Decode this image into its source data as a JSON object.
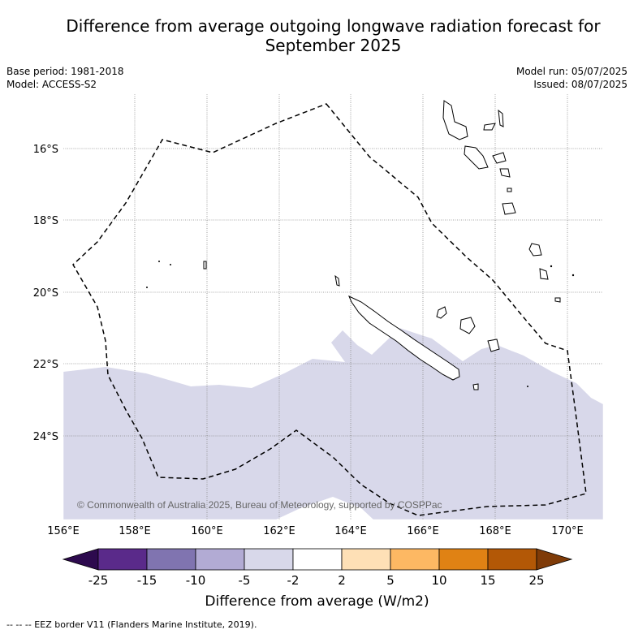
{
  "title_line1": "Difference from average outgoing longwave radiation forecast for",
  "title_line2": "September 2025",
  "base_period": "Base period: 1981-2018",
  "model": "Model: ACCESS-S2",
  "model_run": "Model run: 05/07/2025",
  "issued": "Issued: 08/07/2025",
  "copyright": "© Commonwealth of Australia 2025, Bureau of Meteorology, supported by COSPPac",
  "lon_labels": [
    "156°E",
    "158°E",
    "160°E",
    "162°E",
    "164°E",
    "166°E",
    "168°E",
    "170°E"
  ],
  "lat_labels": [
    "16°S",
    "18°S",
    "20°S",
    "22°S",
    "24°S"
  ],
  "colorbar": {
    "label": "Difference from average (W/m2)",
    "ticks": [
      "-25",
      "-15",
      "-10",
      "-5",
      "-2",
      "2",
      "5",
      "10",
      "15",
      "25"
    ],
    "colors": [
      "#2d0a4e",
      "#5a2a8a",
      "#8074b0",
      "#b2abd4",
      "#d8d8ea",
      "#ffffff",
      "#fee0b6",
      "#fdb863",
      "#e08214",
      "#b35806",
      "#7f3b08"
    ]
  },
  "footer": "--  --  -- EEZ border V11 (Flanders Marine Institute, 2019).",
  "legend_items": [
    {
      "label": "EEZ border",
      "style": "dashed"
    }
  ],
  "regions": [
    {
      "class": "-5 to -2",
      "color": "#d8d8ea"
    }
  ]
}
